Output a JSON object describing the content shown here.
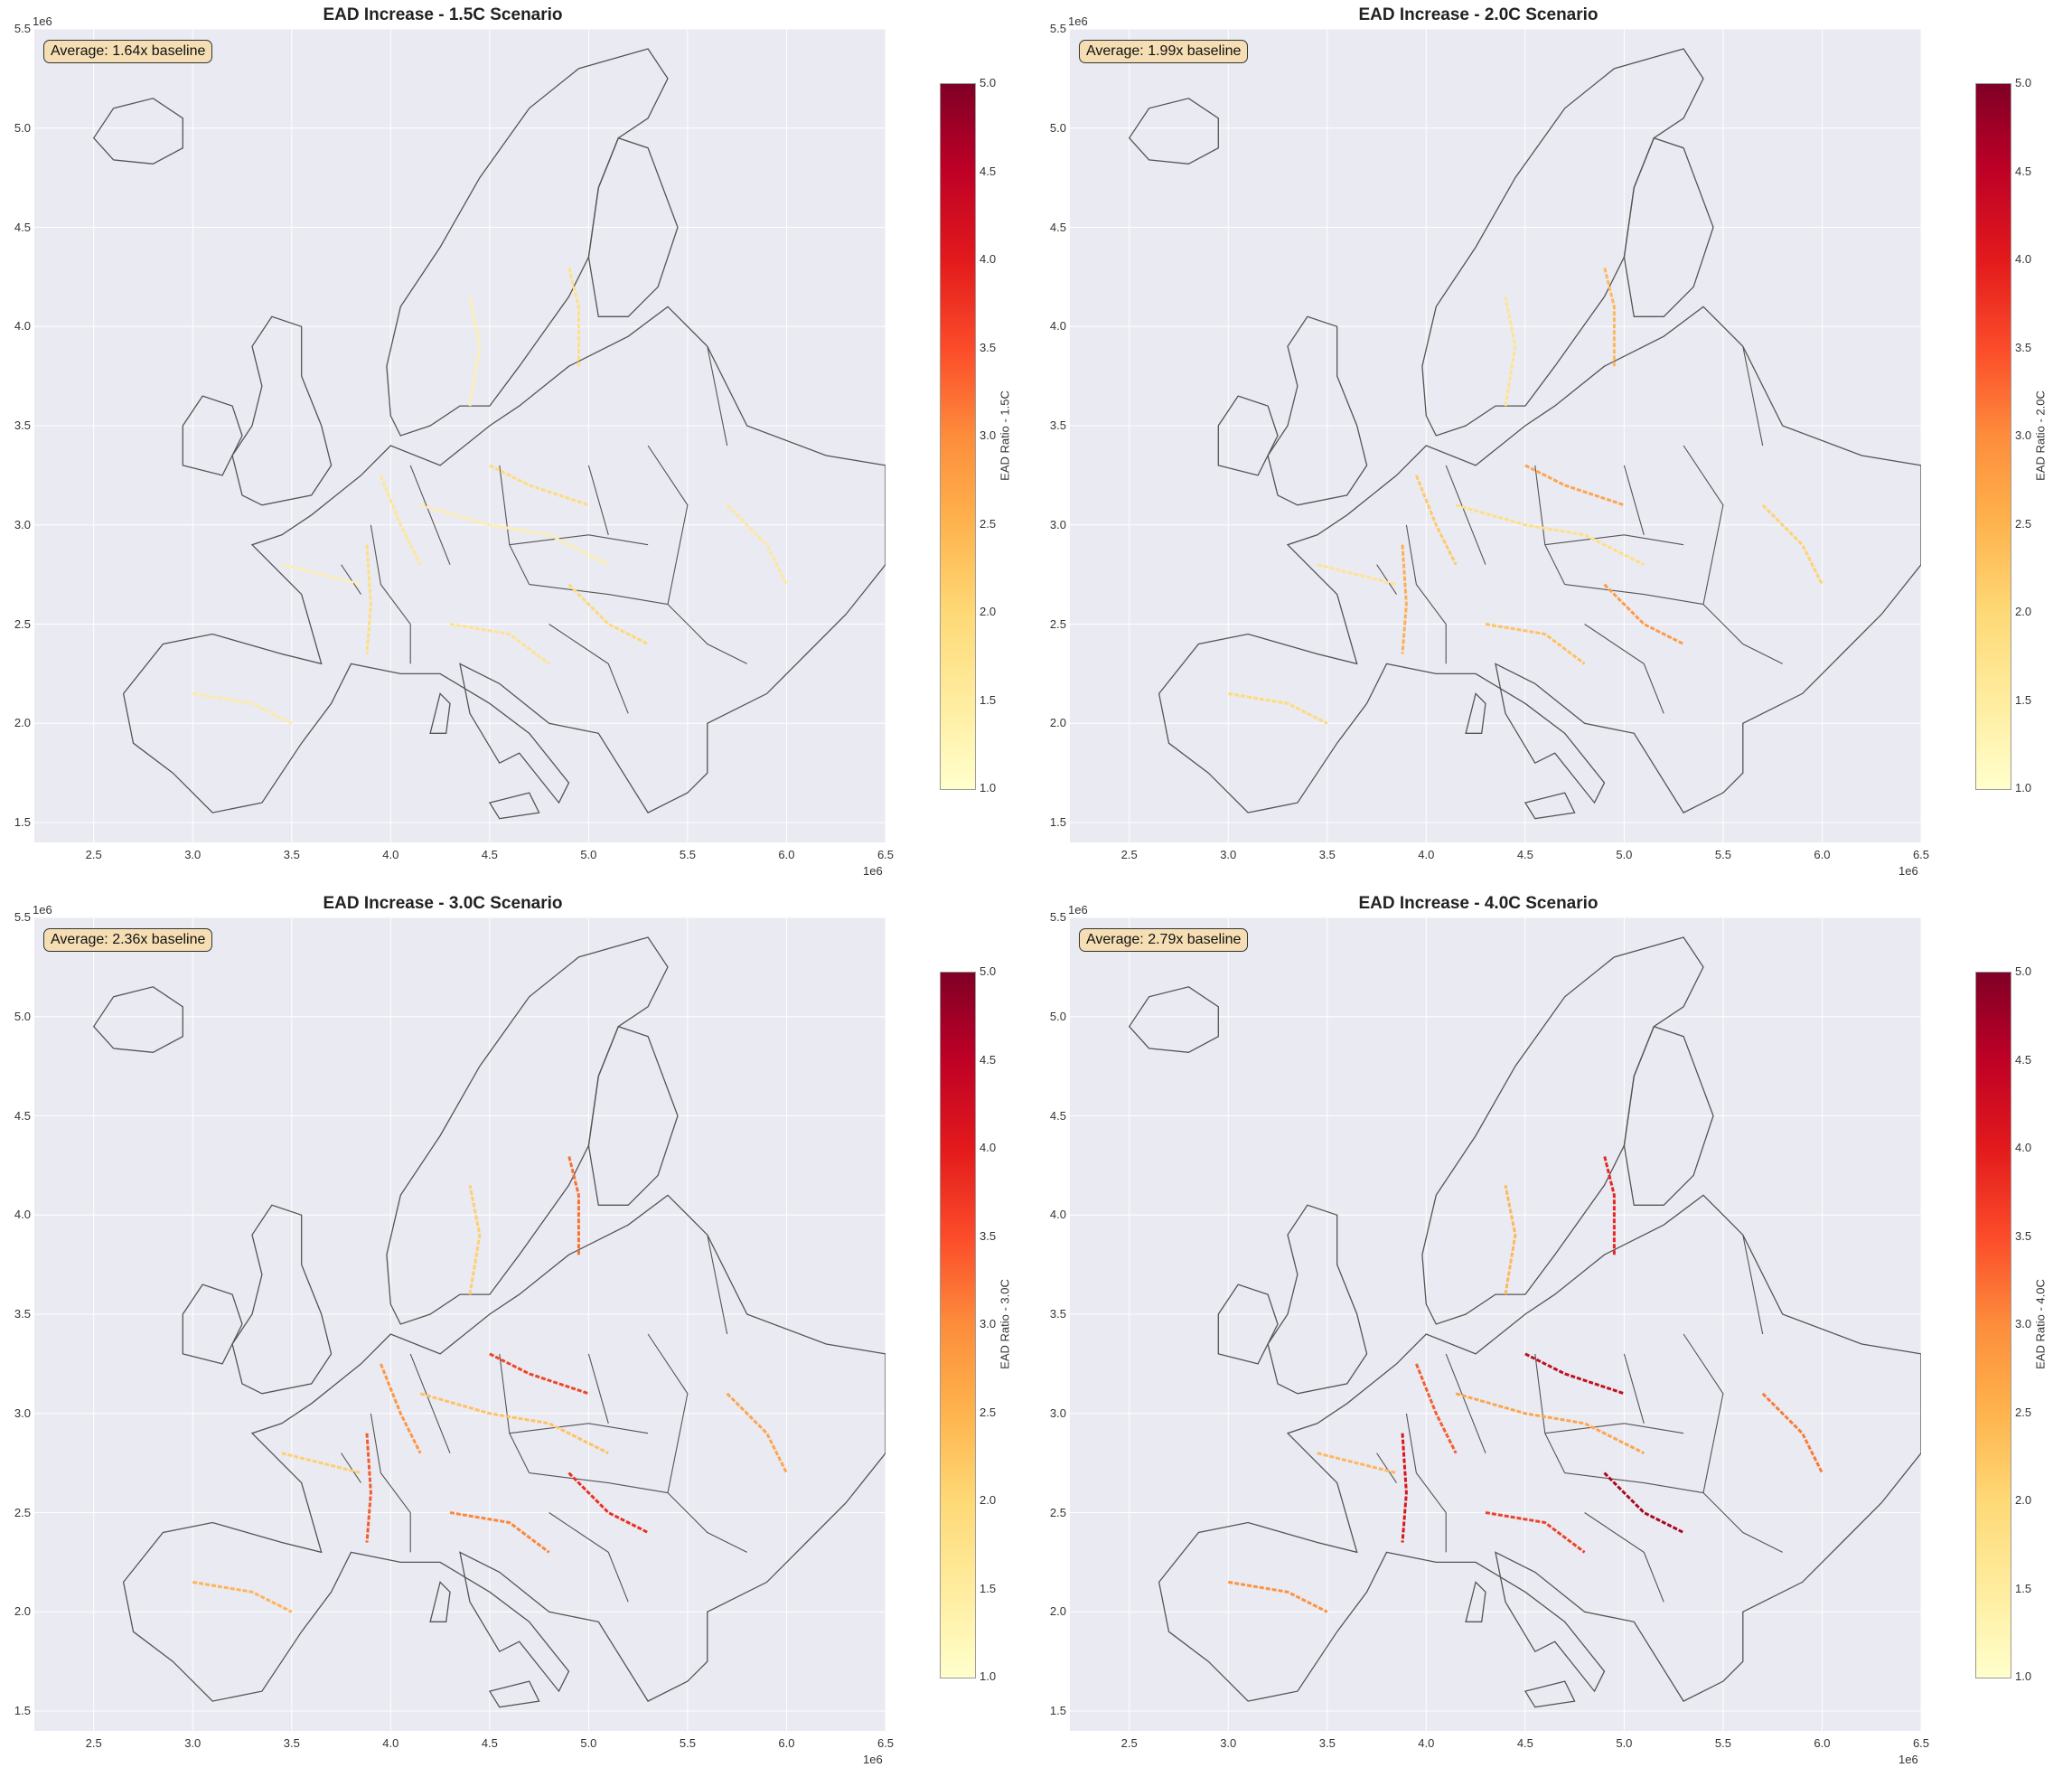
{
  "panels": [
    {
      "title": "EAD Increase - 1.5C Scenario",
      "average_label": "Average: 1.64x baseline",
      "colorbar_label": "EAD Ratio - 1.5C",
      "intensity": 0.25
    },
    {
      "title": "EAD Increase - 2.0C Scenario",
      "average_label": "Average: 1.99x baseline",
      "colorbar_label": "EAD Ratio - 2.0C",
      "intensity": 0.45
    },
    {
      "title": "EAD Increase - 3.0C Scenario",
      "average_label": "Average: 2.36x baseline",
      "colorbar_label": "EAD Ratio - 3.0C",
      "intensity": 0.7
    },
    {
      "title": "EAD Increase - 4.0C Scenario",
      "average_label": "Average: 2.79x baseline",
      "colorbar_label": "EAD Ratio - 4.0C",
      "intensity": 0.9
    }
  ],
  "axes": {
    "x_ticks": [
      "2.5",
      "3.0",
      "3.5",
      "4.0",
      "4.5",
      "5.0",
      "5.5",
      "6.0",
      "6.5"
    ],
    "y_ticks": [
      "5.5",
      "5.0",
      "4.5",
      "4.0",
      "3.5",
      "3.0",
      "2.5",
      "2.0",
      "1.5"
    ],
    "x_exponent": "1e6",
    "y_exponent": "1e6",
    "xlim": [
      2200000,
      6500000
    ],
    "ylim": [
      1400000,
      5500000
    ]
  },
  "colorbar": {
    "ticks": [
      "5.0",
      "4.5",
      "4.0",
      "3.5",
      "3.0",
      "2.5",
      "2.0",
      "1.5",
      "1.0"
    ],
    "range": [
      1.0,
      5.0
    ],
    "colormap": "YlOrRd"
  },
  "colors": {
    "panel_bg": "#eaeaf2",
    "border": "#555555",
    "badge_bg": "#f5deb3"
  }
}
